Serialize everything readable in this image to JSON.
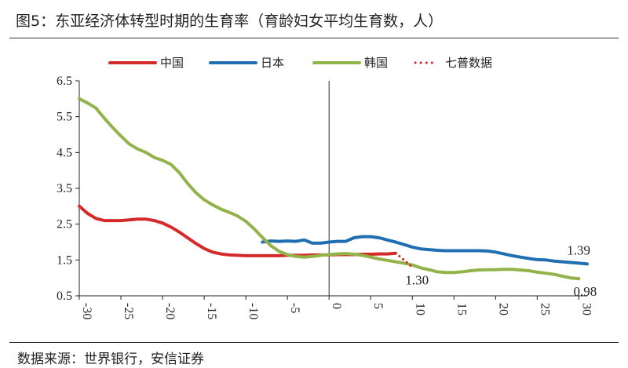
{
  "title": "图5：东亚经济体转型时期的生育率（育龄妇女平均生育数，人）",
  "source": "数据来源：世界银行，安信证券",
  "chart_data": {
    "type": "line",
    "xlim": [
      -30,
      31
    ],
    "ylim": [
      0.5,
      6.5
    ],
    "x_ticks": [
      -30,
      -25,
      -20,
      -15,
      -10,
      -5,
      0,
      5,
      10,
      15,
      20,
      25,
      30
    ],
    "y_ticks": [
      0.5,
      1.5,
      2.5,
      3.5,
      4.5,
      5.5,
      6.5
    ],
    "legend_position": "top",
    "series": [
      {
        "name": "中国",
        "color": "#d42a2a",
        "style": "solid",
        "points": [
          [
            -30,
            3.0
          ],
          [
            -29,
            2.8
          ],
          [
            -28,
            2.66
          ],
          [
            -27,
            2.6
          ],
          [
            -26,
            2.6
          ],
          [
            -25,
            2.6
          ],
          [
            -24,
            2.62
          ],
          [
            -23,
            2.64
          ],
          [
            -22,
            2.64
          ],
          [
            -21,
            2.6
          ],
          [
            -20,
            2.53
          ],
          [
            -19,
            2.42
          ],
          [
            -18,
            2.28
          ],
          [
            -17,
            2.12
          ],
          [
            -16,
            1.96
          ],
          [
            -15,
            1.82
          ],
          [
            -14,
            1.72
          ],
          [
            -13,
            1.67
          ],
          [
            -12,
            1.64
          ],
          [
            -11,
            1.63
          ],
          [
            -10,
            1.62
          ],
          [
            -9,
            1.62
          ],
          [
            -8,
            1.62
          ],
          [
            -7,
            1.62
          ],
          [
            -6,
            1.62
          ],
          [
            -5,
            1.63
          ],
          [
            -4,
            1.63
          ],
          [
            -3,
            1.63
          ],
          [
            -2,
            1.64
          ],
          [
            -1,
            1.64
          ],
          [
            0,
            1.64
          ],
          [
            1,
            1.65
          ],
          [
            2,
            1.65
          ],
          [
            3,
            1.65
          ],
          [
            4,
            1.66
          ],
          [
            5,
            1.66
          ],
          [
            6,
            1.67
          ],
          [
            7,
            1.67
          ],
          [
            8,
            1.69
          ]
        ]
      },
      {
        "name": "日本",
        "color": "#1f6fb2",
        "style": "solid",
        "points": [
          [
            -8,
            2.0
          ],
          [
            -7,
            2.03
          ],
          [
            -6,
            2.02
          ],
          [
            -5,
            2.03
          ],
          [
            -4,
            2.02
          ],
          [
            -3,
            2.06
          ],
          [
            -2,
            1.97
          ],
          [
            -1,
            1.97
          ],
          [
            0,
            2.0
          ],
          [
            1,
            2.02
          ],
          [
            2,
            2.02
          ],
          [
            3,
            2.12
          ],
          [
            4,
            2.15
          ],
          [
            5,
            2.15
          ],
          [
            6,
            2.12
          ],
          [
            7,
            2.06
          ],
          [
            8,
            2.0
          ],
          [
            9,
            1.93
          ],
          [
            10,
            1.86
          ],
          [
            11,
            1.81
          ],
          [
            12,
            1.79
          ],
          [
            13,
            1.77
          ],
          [
            14,
            1.76
          ],
          [
            15,
            1.76
          ],
          [
            16,
            1.76
          ],
          [
            17,
            1.76
          ],
          [
            18,
            1.76
          ],
          [
            19,
            1.75
          ],
          [
            20,
            1.72
          ],
          [
            21,
            1.67
          ],
          [
            22,
            1.62
          ],
          [
            23,
            1.58
          ],
          [
            24,
            1.54
          ],
          [
            25,
            1.51
          ],
          [
            26,
            1.5
          ],
          [
            27,
            1.47
          ],
          [
            28,
            1.45
          ],
          [
            29,
            1.43
          ],
          [
            30,
            1.41
          ],
          [
            31,
            1.39
          ]
        ]
      },
      {
        "name": "韩国",
        "color": "#92b34a",
        "style": "solid",
        "points": [
          [
            -30,
            6.0
          ],
          [
            -29,
            5.88
          ],
          [
            -28,
            5.74
          ],
          [
            -27,
            5.46
          ],
          [
            -26,
            5.2
          ],
          [
            -25,
            4.96
          ],
          [
            -24,
            4.74
          ],
          [
            -23,
            4.6
          ],
          [
            -22,
            4.5
          ],
          [
            -21,
            4.36
          ],
          [
            -20,
            4.28
          ],
          [
            -19,
            4.17
          ],
          [
            -18,
            3.94
          ],
          [
            -17,
            3.64
          ],
          [
            -16,
            3.38
          ],
          [
            -15,
            3.18
          ],
          [
            -14,
            3.04
          ],
          [
            -13,
            2.92
          ],
          [
            -12,
            2.83
          ],
          [
            -11,
            2.73
          ],
          [
            -10,
            2.58
          ],
          [
            -9,
            2.37
          ],
          [
            -8,
            2.13
          ],
          [
            -7,
            1.9
          ],
          [
            -6,
            1.74
          ],
          [
            -5,
            1.65
          ],
          [
            -4,
            1.6
          ],
          [
            -3,
            1.58
          ],
          [
            -2,
            1.6
          ],
          [
            -1,
            1.63
          ],
          [
            0,
            1.65
          ],
          [
            1,
            1.67
          ],
          [
            2,
            1.68
          ],
          [
            3,
            1.66
          ],
          [
            4,
            1.63
          ],
          [
            5,
            1.58
          ],
          [
            6,
            1.53
          ],
          [
            7,
            1.49
          ],
          [
            8,
            1.45
          ],
          [
            9,
            1.41
          ],
          [
            10,
            1.36
          ],
          [
            11,
            1.28
          ],
          [
            12,
            1.23
          ],
          [
            13,
            1.17
          ],
          [
            14,
            1.15
          ],
          [
            15,
            1.15
          ],
          [
            16,
            1.17
          ],
          [
            17,
            1.2
          ],
          [
            18,
            1.22
          ],
          [
            19,
            1.23
          ],
          [
            20,
            1.23
          ],
          [
            21,
            1.24
          ],
          [
            22,
            1.24
          ],
          [
            23,
            1.22
          ],
          [
            24,
            1.2
          ],
          [
            25,
            1.16
          ],
          [
            26,
            1.13
          ],
          [
            27,
            1.1
          ],
          [
            28,
            1.05
          ],
          [
            29,
            1.0
          ],
          [
            30,
            0.98
          ]
        ]
      },
      {
        "name": "七普数据",
        "color": "#d42a2a",
        "style": "dotted",
        "points": [
          [
            8,
            1.69
          ],
          [
            9,
            1.5
          ],
          [
            10,
            1.3
          ]
        ]
      }
    ],
    "annotations": [
      {
        "text": "1.39",
        "x": 31,
        "y": 1.39
      },
      {
        "text": "1.30",
        "x": 10,
        "y": 1.3
      },
      {
        "text": "0.98",
        "x": 30,
        "y": 0.98
      }
    ]
  }
}
